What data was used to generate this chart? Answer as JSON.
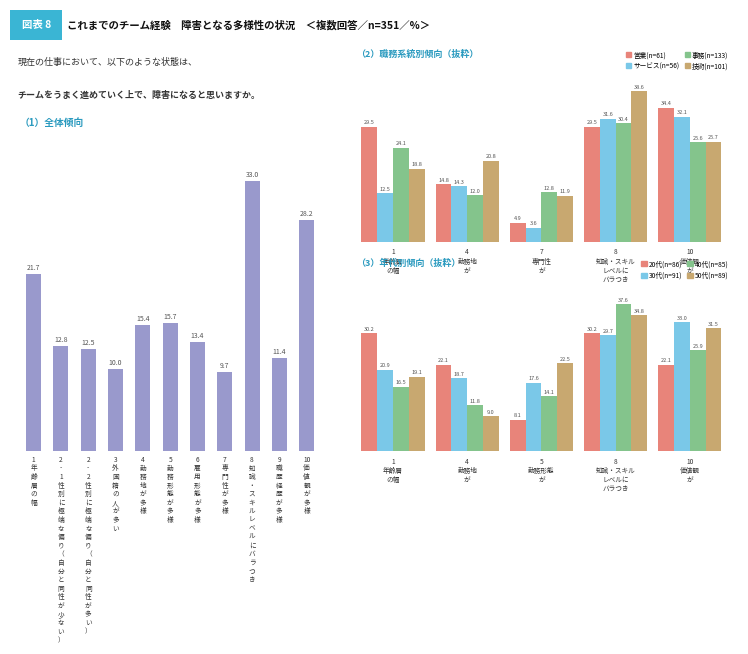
{
  "header_box_text": "図表 8",
  "header_title": "これまでのチーム経験　障害となる多様性の状況　＜複数回答／n=351／%＞",
  "question1": "現在の仕事において、以下のような状態は、",
  "question2": "チームをうまく進めていく上で、障害になると思いますか。",
  "section1_title": "（1）全体傾向",
  "section2_title": "（2）職務系統別傾向（抜粋）",
  "section3_title": "（3）年代別傾向（抜粋）",
  "overall_values": [
    21.7,
    12.8,
    12.5,
    10.0,
    15.4,
    15.7,
    13.4,
    9.7,
    33.0,
    11.4,
    28.2
  ],
  "overall_color": "#9999cc",
  "dept_values": {
    "営業(n=61)": [
      29.5,
      14.8,
      4.9,
      29.5,
      34.4
    ],
    "サービス(n=56)": [
      12.5,
      14.3,
      3.6,
      31.6,
      32.1
    ],
    "事務(n=133)": [
      24.1,
      12.0,
      12.8,
      30.4,
      25.6
    ],
    "技術(n=101)": [
      18.8,
      20.8,
      11.9,
      38.6,
      25.7
    ]
  },
  "dept_colors": [
    "#e8847a",
    "#7ac8e8",
    "#84c48c",
    "#c8a870"
  ],
  "dept_legend": [
    "営業(n=61)",
    "サービス(n=56)",
    "事務(n=133)",
    "技術(n=101)"
  ],
  "dept_group_labels": [
    "1\n年齢層\nの幅",
    "4\n勤務地\nが",
    "7\n専門性\nが",
    "8\n知識・スキル\nレベルに\nバラつき",
    "10\n価値観\nが"
  ],
  "age_values": {
    "20代(n=86)": [
      30.2,
      22.1,
      8.1,
      30.2,
      22.1
    ],
    "30代(n=91)": [
      20.9,
      18.7,
      17.6,
      29.7,
      33.0
    ],
    "40代(n=85)": [
      16.5,
      11.8,
      14.1,
      37.6,
      25.9
    ],
    "50代(n=89)": [
      19.1,
      9.0,
      22.5,
      34.8,
      31.5
    ]
  },
  "age_colors": [
    "#e8847a",
    "#7ac8e8",
    "#84c48c",
    "#c8a870"
  ],
  "age_legend": [
    "20代(n=86)",
    "30代(n=91)",
    "40代(n=85)",
    "50代(n=89)"
  ],
  "age_group_labels": [
    "1\n年齢層\nの幅",
    "4\n勤務地\nが",
    "5\n勤務形態\nが",
    "8\n知識・スキル\nレベルに\nバラつき",
    "10\n価値観\nが"
  ],
  "header_bg": "#3ab5d4",
  "section_color": "#2a9abf",
  "text_dark": "#333333",
  "text_gray": "#666666"
}
